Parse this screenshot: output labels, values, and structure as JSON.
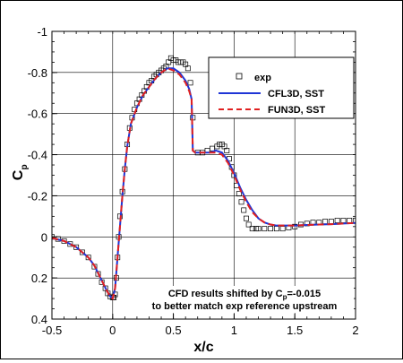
{
  "chart_data": {
    "type": "line",
    "title": "",
    "xlabel": "x/c",
    "ylabel": "C",
    "ylabel_subscript": "p",
    "xlim": [
      -0.5,
      2
    ],
    "ylim": [
      0.4,
      -1
    ],
    "y_inverted": true,
    "x_ticks": [
      -0.5,
      0,
      0.5,
      1,
      1.5,
      2
    ],
    "x_tick_labels": [
      "-0.5",
      "0",
      "0.5",
      "1",
      "1.5",
      "2"
    ],
    "y_ticks": [
      -1,
      -0.8,
      -0.6,
      -0.4,
      -0.2,
      0,
      0.2,
      0.4
    ],
    "y_tick_labels": [
      "-1",
      "-0.8",
      "-0.6",
      "-0.4",
      "-0.2",
      "0",
      "0.2",
      "0.4"
    ],
    "grid": true,
    "legend_position": "top-right",
    "annotation": {
      "line1": "CFD results shifted by C",
      "line1_subscript": "p",
      "line1_suffix": "=-0.015",
      "line2": "to better match exp reference upstream"
    },
    "series": [
      {
        "name": "exp",
        "style": "markers",
        "color": "#000000",
        "x": [
          -0.5,
          -0.45,
          -0.4,
          -0.35,
          -0.3,
          -0.25,
          -0.2,
          -0.15,
          -0.12,
          -0.09,
          -0.06,
          -0.04,
          -0.02,
          0.0,
          0.01,
          0.02,
          0.03,
          0.04,
          0.05,
          0.06,
          0.08,
          0.1,
          0.12,
          0.14,
          0.16,
          0.18,
          0.2,
          0.22,
          0.24,
          0.26,
          0.28,
          0.3,
          0.32,
          0.34,
          0.36,
          0.38,
          0.4,
          0.42,
          0.44,
          0.46,
          0.48,
          0.5,
          0.52,
          0.54,
          0.56,
          0.58,
          0.6,
          0.62,
          0.64,
          0.66,
          0.7,
          0.74,
          0.78,
          0.82,
          0.86,
          0.88,
          0.9,
          0.92,
          0.94,
          0.96,
          0.98,
          1.0,
          1.02,
          1.04,
          1.06,
          1.08,
          1.1,
          1.12,
          1.15,
          1.18,
          1.2,
          1.25,
          1.3,
          1.35,
          1.4,
          1.45,
          1.5,
          1.55,
          1.6,
          1.65,
          1.7,
          1.75,
          1.8,
          1.85,
          1.9,
          1.95,
          2.0
        ],
        "y": [
          0.0,
          0.01,
          0.02,
          0.035,
          0.05,
          0.075,
          0.1,
          0.145,
          0.18,
          0.22,
          0.25,
          0.275,
          0.29,
          0.295,
          0.295,
          0.28,
          0.2,
          0.1,
          0.0,
          -0.1,
          -0.22,
          -0.33,
          -0.45,
          -0.53,
          -0.58,
          -0.62,
          -0.65,
          -0.67,
          -0.69,
          -0.71,
          -0.73,
          -0.75,
          -0.76,
          -0.78,
          -0.79,
          -0.8,
          -0.81,
          -0.82,
          -0.83,
          -0.85,
          -0.87,
          -0.86,
          -0.86,
          -0.85,
          -0.85,
          -0.85,
          -0.84,
          -0.82,
          -0.75,
          -0.58,
          -0.41,
          -0.41,
          -0.42,
          -0.43,
          -0.44,
          -0.45,
          -0.45,
          -0.44,
          -0.42,
          -0.38,
          -0.34,
          -0.3,
          -0.25,
          -0.21,
          -0.17,
          -0.13,
          -0.09,
          -0.06,
          -0.04,
          -0.04,
          -0.04,
          -0.04,
          -0.04,
          -0.04,
          -0.04,
          -0.045,
          -0.05,
          -0.06,
          -0.065,
          -0.07,
          -0.07,
          -0.075,
          -0.075,
          -0.08,
          -0.08,
          -0.08,
          -0.08
        ]
      },
      {
        "name": "CFL3D, SST",
        "style": "solid",
        "color": "#1f35d6",
        "x": [
          -0.5,
          -0.4,
          -0.3,
          -0.2,
          -0.15,
          -0.1,
          -0.05,
          -0.02,
          0.0,
          0.02,
          0.04,
          0.06,
          0.08,
          0.1,
          0.12,
          0.15,
          0.2,
          0.25,
          0.3,
          0.35,
          0.4,
          0.45,
          0.5,
          0.55,
          0.6,
          0.63,
          0.65,
          0.66,
          0.68,
          0.7,
          0.75,
          0.8,
          0.85,
          0.9,
          0.95,
          1.0,
          1.05,
          1.1,
          1.15,
          1.2,
          1.25,
          1.3,
          1.35,
          1.4,
          1.5,
          1.6,
          1.7,
          1.8,
          1.9,
          2.0
        ],
        "y": [
          0.005,
          0.02,
          0.05,
          0.1,
          0.14,
          0.2,
          0.26,
          0.29,
          0.3,
          0.25,
          0.1,
          -0.05,
          -0.2,
          -0.33,
          -0.44,
          -0.55,
          -0.63,
          -0.69,
          -0.73,
          -0.77,
          -0.8,
          -0.82,
          -0.82,
          -0.8,
          -0.76,
          -0.72,
          -0.67,
          -0.42,
          -0.41,
          -0.41,
          -0.41,
          -0.41,
          -0.42,
          -0.41,
          -0.37,
          -0.31,
          -0.24,
          -0.18,
          -0.13,
          -0.09,
          -0.07,
          -0.06,
          -0.055,
          -0.055,
          -0.055,
          -0.058,
          -0.06,
          -0.062,
          -0.065,
          -0.068
        ]
      },
      {
        "name": "FUN3D, SST",
        "style": "dashed",
        "color": "#e02020",
        "x": [
          -0.5,
          -0.4,
          -0.3,
          -0.2,
          -0.15,
          -0.1,
          -0.05,
          -0.02,
          0.0,
          0.02,
          0.04,
          0.06,
          0.08,
          0.1,
          0.12,
          0.15,
          0.2,
          0.25,
          0.3,
          0.35,
          0.4,
          0.45,
          0.5,
          0.55,
          0.6,
          0.63,
          0.65,
          0.66,
          0.68,
          0.7,
          0.75,
          0.8,
          0.85,
          0.9,
          0.95,
          1.0,
          1.05,
          1.1,
          1.15,
          1.2,
          1.25,
          1.3,
          1.35,
          1.4,
          1.5,
          1.6,
          1.7,
          1.8,
          1.9,
          2.0
        ],
        "y": [
          0.005,
          0.02,
          0.05,
          0.1,
          0.14,
          0.2,
          0.26,
          0.29,
          0.3,
          0.25,
          0.1,
          -0.05,
          -0.2,
          -0.33,
          -0.44,
          -0.55,
          -0.63,
          -0.69,
          -0.73,
          -0.77,
          -0.8,
          -0.82,
          -0.81,
          -0.79,
          -0.75,
          -0.71,
          -0.67,
          -0.42,
          -0.41,
          -0.41,
          -0.41,
          -0.41,
          -0.41,
          -0.4,
          -0.36,
          -0.3,
          -0.23,
          -0.17,
          -0.12,
          -0.09,
          -0.07,
          -0.06,
          -0.055,
          -0.055,
          -0.055,
          -0.058,
          -0.06,
          -0.062,
          -0.065,
          -0.068
        ]
      }
    ]
  }
}
